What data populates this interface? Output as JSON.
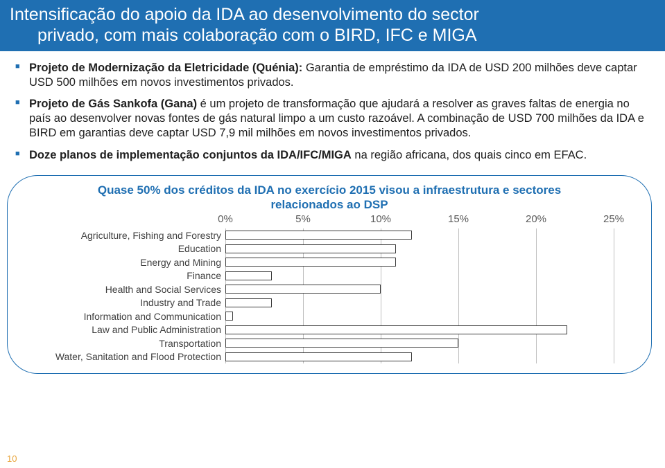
{
  "title": {
    "line1": "Intensificação do apoio da IDA ao desenvolvimento do sector",
    "line2": "privado, com mais colaboração com o BIRD, IFC e MIGA"
  },
  "bullets": [
    {
      "bold": "Projeto de Modernização da Eletricidade (Quénia):",
      "rest": " Garantia de empréstimo da IDA de USD 200 milhões deve captar USD 500 milhões em novos investimentos privados."
    },
    {
      "bold": "Projeto de Gás Sankofa (Gana)",
      "rest": " é um projeto de transformação que ajudará a resolver as graves faltas de energia no país ao desenvolver novas fontes de gás natural limpo a um custo razoável. A combinação de USD 700 milhões da IDA e BIRD em garantias deve captar USD 7,9 mil milhões em novos investimentos privados."
    },
    {
      "bold": "Doze planos de implementação conjuntos da IDA/IFC/MIGA",
      "rest": " na região africana, dos quais cinco em EFAC."
    }
  ],
  "callout_title": {
    "line1": "Quase 50% dos créditos da IDA no exercício 2015 visou a infraestrutura e sectores",
    "line2": "relacionados ao DSP"
  },
  "chart": {
    "type": "bar",
    "x_axis": {
      "ticks": [
        0,
        5,
        10,
        15,
        20,
        25
      ],
      "tick_labels": [
        "0%",
        "5%",
        "10%",
        "15%",
        "20%",
        "25%"
      ],
      "max": 25
    },
    "categories": [
      "Agriculture, Fishing and Forestry",
      "Education",
      "Energy and Mining",
      "Finance",
      "Health and Social Services",
      "Industry and Trade",
      "Information and Communication",
      "Law and Public Administration",
      "Transportation",
      "Water, Sanitation and Flood Protection"
    ],
    "values": [
      12,
      11,
      11,
      3,
      10,
      3,
      0.5,
      22,
      15,
      12
    ],
    "bar_fill": "#ffffff",
    "bar_border": "#3a3a3a",
    "grid_color": "#bfbfbf",
    "label_color": "#404040",
    "tick_color": "#5a5a5a",
    "label_fontsize": 14,
    "tick_fontsize": 15
  },
  "page_number": "10",
  "colors": {
    "banner_bg": "#1f6fb2",
    "banner_text": "#ffffff",
    "bullet_marker": "#1f6fb2",
    "callout_border": "#1f6fb2",
    "callout_title": "#1f6fb2",
    "page_num": "#e8a43a"
  }
}
